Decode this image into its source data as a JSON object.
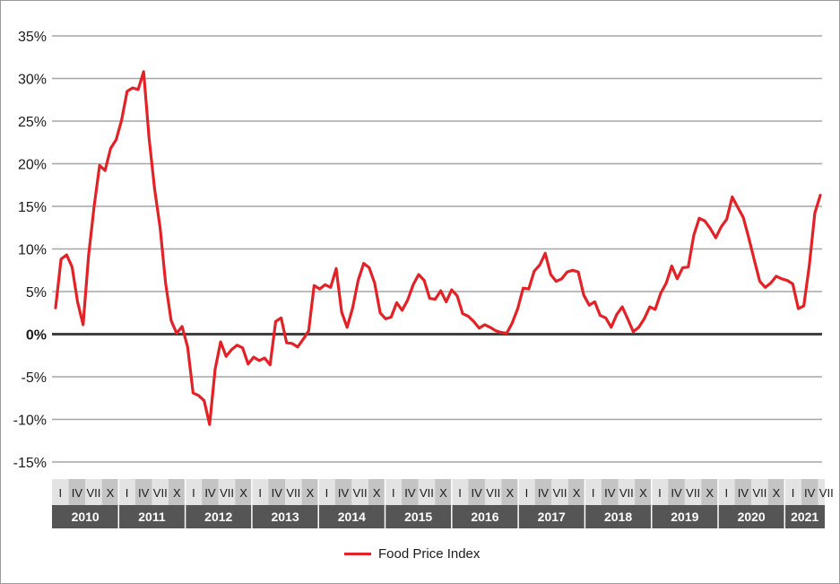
{
  "chart_data": {
    "type": "line",
    "ylim": [
      -15,
      35
    ],
    "yticks": [
      "35%",
      "30%",
      "25%",
      "20%",
      "15%",
      "10%",
      "5%",
      "0%",
      "-5%",
      "-10%",
      "-15%"
    ],
    "grid": true,
    "legend_position": "bottom",
    "quarter_labels": [
      "I",
      "IV",
      "VII",
      "X"
    ],
    "years": [
      "2010",
      "2011",
      "2012",
      "2013",
      "2014",
      "2015",
      "2016",
      "2017",
      "2018",
      "2019",
      "2020",
      "2021"
    ],
    "series": [
      {
        "name": "Food Price Index",
        "color": "#e32227",
        "x_start": "2010-01",
        "frequency": "monthly",
        "values": [
          3.1,
          8.8,
          9.3,
          7.9,
          3.8,
          1.1,
          9.2,
          15.0,
          19.8,
          19.2,
          21.8,
          22.8,
          25.1,
          28.5,
          28.9,
          28.7,
          30.8,
          23.0,
          17.0,
          12.5,
          6.0,
          1.6,
          0.1,
          0.9,
          -1.5,
          -6.9,
          -7.2,
          -7.8,
          -10.6,
          -4.1,
          -0.9,
          -2.6,
          -1.8,
          -1.3,
          -1.6,
          -3.5,
          -2.7,
          -3.1,
          -2.8,
          -3.6,
          1.5,
          1.9,
          -1.0,
          -1.1,
          -1.5,
          -0.6,
          0.4,
          5.7,
          5.3,
          5.8,
          5.5,
          7.7,
          2.6,
          0.8,
          3.1,
          6.3,
          8.3,
          7.8,
          6.0,
          2.5,
          1.8,
          2.0,
          3.7,
          2.8,
          4.0,
          5.8,
          7.0,
          6.3,
          4.2,
          4.1,
          5.1,
          3.8,
          5.2,
          4.5,
          2.4,
          2.1,
          1.5,
          0.7,
          1.1,
          0.8,
          0.4,
          0.2,
          0.1,
          1.3,
          3.0,
          5.4,
          5.3,
          7.4,
          8.1,
          9.5,
          7.0,
          6.2,
          6.5,
          7.3,
          7.5,
          7.3,
          4.6,
          3.4,
          3.8,
          2.2,
          1.9,
          0.8,
          2.3,
          3.2,
          1.8,
          0.3,
          0.8,
          1.8,
          3.2,
          2.9,
          4.8,
          6.0,
          8.0,
          6.5,
          7.8,
          7.9,
          11.6,
          13.6,
          13.3,
          12.4,
          11.3,
          12.6,
          13.5,
          16.1,
          14.9,
          13.7,
          11.3,
          8.7,
          6.2,
          5.5,
          6.0,
          6.8,
          6.5,
          6.3,
          5.9,
          3.0,
          3.3,
          8.0,
          14.2,
          16.3
        ]
      }
    ]
  }
}
